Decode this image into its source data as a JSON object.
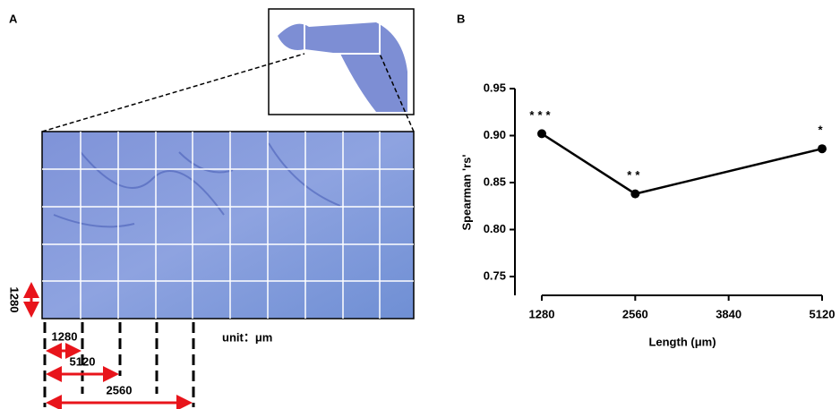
{
  "panel_a": {
    "label": "A",
    "scale_labels": [
      "1280",
      "1280",
      "5120",
      "2560"
    ],
    "unit": "unit：μm"
  },
  "chart_data": {
    "type": "line",
    "panel_label": "B",
    "ylabel": "Spearman 'rs'",
    "xlabel": "Length (μm)",
    "x": [
      1280,
      2560,
      5120
    ],
    "values": [
      0.902,
      0.838,
      0.886
    ],
    "annotations": [
      "***",
      "**",
      "*"
    ],
    "color": "#000000",
    "xlim": [
      1280,
      5120
    ],
    "xticks": [
      1280,
      2560,
      3840,
      5120
    ],
    "ylim": [
      0.73,
      0.95
    ],
    "yticks": [
      {
        "value": 0.75,
        "label": "0.75"
      },
      {
        "value": 0.8,
        "label": "0.80"
      },
      {
        "value": 0.85,
        "label": "0.85"
      },
      {
        "value": 0.9,
        "label": "0.90"
      },
      {
        "value": 0.95,
        "label": "0.95"
      }
    ]
  }
}
